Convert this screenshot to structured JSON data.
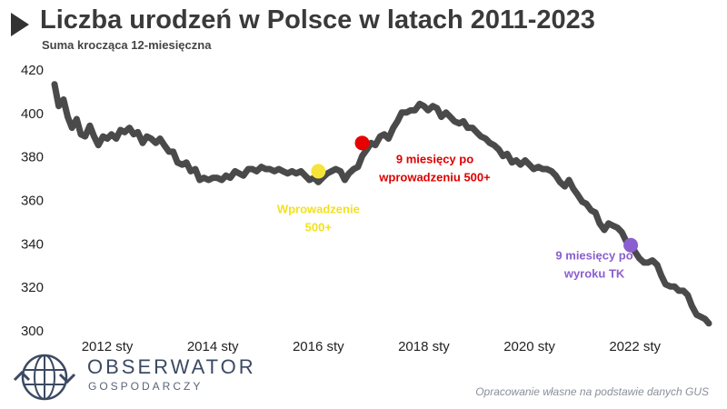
{
  "header": {
    "title": "Liczba urodzeń w Polsce w latach 2011-2023",
    "subtitle": "Suma krocząca 12-miesięczna"
  },
  "brand": {
    "name": "OBSERWATOR",
    "sub": "GOSPODARCZY",
    "icon": "globe-arrows-icon"
  },
  "footer": {
    "source": "Opracowanie własne na podstawie danych GUS"
  },
  "chart_data": {
    "type": "line",
    "title": "Liczba urodzeń w Polsce w latach 2011-2023",
    "subtitle": "Suma krocząca 12-miesięczna",
    "xlabel": "",
    "ylabel": "",
    "ylim": [
      300,
      420
    ],
    "yticks": [
      300,
      320,
      340,
      360,
      380,
      400,
      420
    ],
    "xlim": [
      2011.0,
      2023.4
    ],
    "xticks": [
      {
        "x": 2012.0,
        "label": "2012 sty"
      },
      {
        "x": 2014.0,
        "label": "2014 sty"
      },
      {
        "x": 2016.0,
        "label": "2016 sty"
      },
      {
        "x": 2018.0,
        "label": "2018 sty"
      },
      {
        "x": 2020.0,
        "label": "2020 sty"
      },
      {
        "x": 2022.0,
        "label": "2022 sty"
      }
    ],
    "grid": false,
    "line_color": "#4a4a4a",
    "series": [
      {
        "points": [
          [
            2011.0,
            413
          ],
          [
            2011.08,
            403
          ],
          [
            2011.17,
            406
          ],
          [
            2011.25,
            398
          ],
          [
            2011.33,
            393
          ],
          [
            2011.42,
            397
          ],
          [
            2011.5,
            390
          ],
          [
            2011.58,
            389
          ],
          [
            2011.67,
            394
          ],
          [
            2011.75,
            389
          ],
          [
            2011.83,
            385
          ],
          [
            2011.92,
            389
          ],
          [
            2012.0,
            388
          ],
          [
            2012.08,
            390
          ],
          [
            2012.17,
            388
          ],
          [
            2012.25,
            392
          ],
          [
            2012.33,
            391
          ],
          [
            2012.42,
            393
          ],
          [
            2012.5,
            390
          ],
          [
            2012.58,
            391
          ],
          [
            2012.67,
            386
          ],
          [
            2012.75,
            389
          ],
          [
            2012.83,
            388
          ],
          [
            2012.92,
            386
          ],
          [
            2013.0,
            388
          ],
          [
            2013.08,
            385
          ],
          [
            2013.17,
            382
          ],
          [
            2013.25,
            382
          ],
          [
            2013.33,
            377
          ],
          [
            2013.42,
            376
          ],
          [
            2013.5,
            377
          ],
          [
            2013.58,
            373
          ],
          [
            2013.67,
            374
          ],
          [
            2013.75,
            369
          ],
          [
            2013.83,
            370
          ],
          [
            2013.92,
            369
          ],
          [
            2014.0,
            370
          ],
          [
            2014.08,
            370
          ],
          [
            2014.17,
            369
          ],
          [
            2014.25,
            371
          ],
          [
            2014.33,
            370
          ],
          [
            2014.42,
            373
          ],
          [
            2014.5,
            372
          ],
          [
            2014.58,
            371
          ],
          [
            2014.67,
            374
          ],
          [
            2014.75,
            374
          ],
          [
            2014.83,
            373
          ],
          [
            2014.92,
            375
          ],
          [
            2015.0,
            374
          ],
          [
            2015.08,
            374
          ],
          [
            2015.17,
            373
          ],
          [
            2015.25,
            374
          ],
          [
            2015.33,
            373
          ],
          [
            2015.42,
            372
          ],
          [
            2015.5,
            373
          ],
          [
            2015.58,
            372
          ],
          [
            2015.67,
            373
          ],
          [
            2015.75,
            371
          ],
          [
            2015.83,
            369
          ],
          [
            2015.92,
            370
          ],
          [
            2016.0,
            368
          ],
          [
            2016.08,
            370
          ],
          [
            2016.17,
            372
          ],
          [
            2016.25,
            373
          ],
          [
            2016.33,
            374
          ],
          [
            2016.42,
            373
          ],
          [
            2016.5,
            369
          ],
          [
            2016.58,
            372
          ],
          [
            2016.67,
            374
          ],
          [
            2016.75,
            375
          ],
          [
            2016.83,
            380
          ],
          [
            2016.92,
            383
          ],
          [
            2017.0,
            386
          ],
          [
            2017.08,
            385
          ],
          [
            2017.17,
            389
          ],
          [
            2017.25,
            390
          ],
          [
            2017.33,
            388
          ],
          [
            2017.42,
            393
          ],
          [
            2017.5,
            396
          ],
          [
            2017.58,
            400
          ],
          [
            2017.67,
            400
          ],
          [
            2017.75,
            401
          ],
          [
            2017.83,
            401
          ],
          [
            2017.92,
            404
          ],
          [
            2018.0,
            403
          ],
          [
            2018.08,
            401
          ],
          [
            2018.17,
            403
          ],
          [
            2018.25,
            402
          ],
          [
            2018.33,
            398
          ],
          [
            2018.42,
            400
          ],
          [
            2018.5,
            398
          ],
          [
            2018.58,
            396
          ],
          [
            2018.67,
            395
          ],
          [
            2018.75,
            396
          ],
          [
            2018.83,
            393
          ],
          [
            2018.92,
            393
          ],
          [
            2019.0,
            391
          ],
          [
            2019.08,
            389
          ],
          [
            2019.17,
            388
          ],
          [
            2019.25,
            386
          ],
          [
            2019.33,
            385
          ],
          [
            2019.42,
            383
          ],
          [
            2019.5,
            380
          ],
          [
            2019.58,
            381
          ],
          [
            2019.67,
            377
          ],
          [
            2019.75,
            378
          ],
          [
            2019.83,
            376
          ],
          [
            2019.92,
            378
          ],
          [
            2020.0,
            376
          ],
          [
            2020.08,
            374
          ],
          [
            2020.17,
            375
          ],
          [
            2020.25,
            374
          ],
          [
            2020.33,
            374
          ],
          [
            2020.42,
            373
          ],
          [
            2020.5,
            371
          ],
          [
            2020.58,
            368
          ],
          [
            2020.67,
            366
          ],
          [
            2020.75,
            369
          ],
          [
            2020.83,
            365
          ],
          [
            2020.92,
            362
          ],
          [
            2021.0,
            359
          ],
          [
            2021.08,
            358
          ],
          [
            2021.17,
            355
          ],
          [
            2021.25,
            354
          ],
          [
            2021.33,
            349
          ],
          [
            2021.42,
            346
          ],
          [
            2021.5,
            349
          ],
          [
            2021.58,
            348
          ],
          [
            2021.67,
            347
          ],
          [
            2021.75,
            345
          ],
          [
            2021.83,
            341
          ],
          [
            2021.92,
            339
          ],
          [
            2022.0,
            336
          ],
          [
            2022.08,
            333
          ],
          [
            2022.17,
            331
          ],
          [
            2022.25,
            331
          ],
          [
            2022.33,
            332
          ],
          [
            2022.42,
            330
          ],
          [
            2022.5,
            325
          ],
          [
            2022.58,
            321
          ],
          [
            2022.67,
            320
          ],
          [
            2022.75,
            320
          ],
          [
            2022.83,
            318
          ],
          [
            2022.92,
            318
          ],
          [
            2023.0,
            316
          ],
          [
            2023.08,
            311
          ],
          [
            2023.17,
            307
          ],
          [
            2023.25,
            306
          ],
          [
            2023.33,
            305
          ],
          [
            2023.4,
            303
          ]
        ]
      }
    ],
    "annotations": [
      {
        "x": 2016.0,
        "y": 373,
        "color": "#f7e43a",
        "text_color": "#f2e11e",
        "lines": [
          "Wprowadzenie",
          "500+"
        ]
      },
      {
        "x": 2016.83,
        "y": 386,
        "color": "#e60000",
        "text_color": "#dd0000",
        "lines": [
          "9 miesięcy po",
          "wprowadzeniu 500+"
        ]
      },
      {
        "x": 2021.92,
        "y": 339,
        "color": "#8a5fcf",
        "text_color": "#8a5fcf",
        "lines": [
          "9 miesięcy po",
          "wyroku TK"
        ]
      }
    ]
  }
}
